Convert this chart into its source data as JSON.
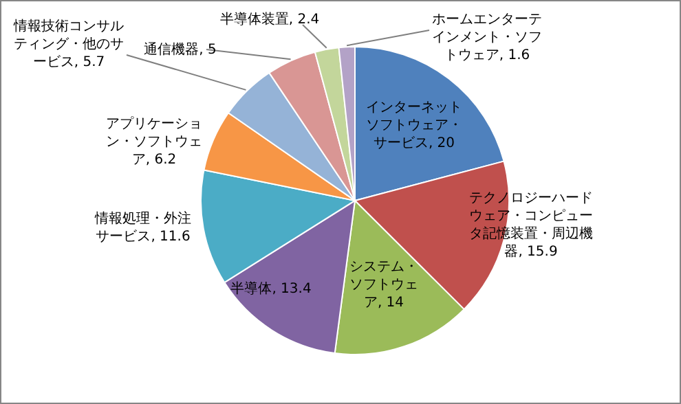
{
  "chart_data": {
    "type": "pie",
    "categories": [
      "インターネットソフトウェア・サービス",
      "テクノロジーハードウェア・コンピュータ記憶装置・周辺機器",
      "システム・ソフトウェア",
      "半導体",
      "情報処理・外注サービス",
      "アプリケーション・ソフトウェア",
      "情報技術コンサルティング・他のサービス",
      "通信機器",
      "半導体装置",
      "ホームエンターテインメント・ソフトウェア"
    ],
    "values": [
      20,
      15.9,
      14,
      13.4,
      11.6,
      6.2,
      5.7,
      5,
      2.4,
      1.6
    ],
    "colors": [
      "#4f81bd",
      "#c0504d",
      "#9bbb59",
      "#8064a2",
      "#4bacc6",
      "#f79646",
      "#95b3d7",
      "#d99694",
      "#c3d69b",
      "#b3a2c7"
    ],
    "value_labels": [
      ", 20",
      ", 15.9",
      ", 14",
      ", 13.4",
      ", 11.6",
      ", 6.2",
      ", 5.7",
      ", 5",
      ", 2.4",
      ", 1.6"
    ]
  }
}
